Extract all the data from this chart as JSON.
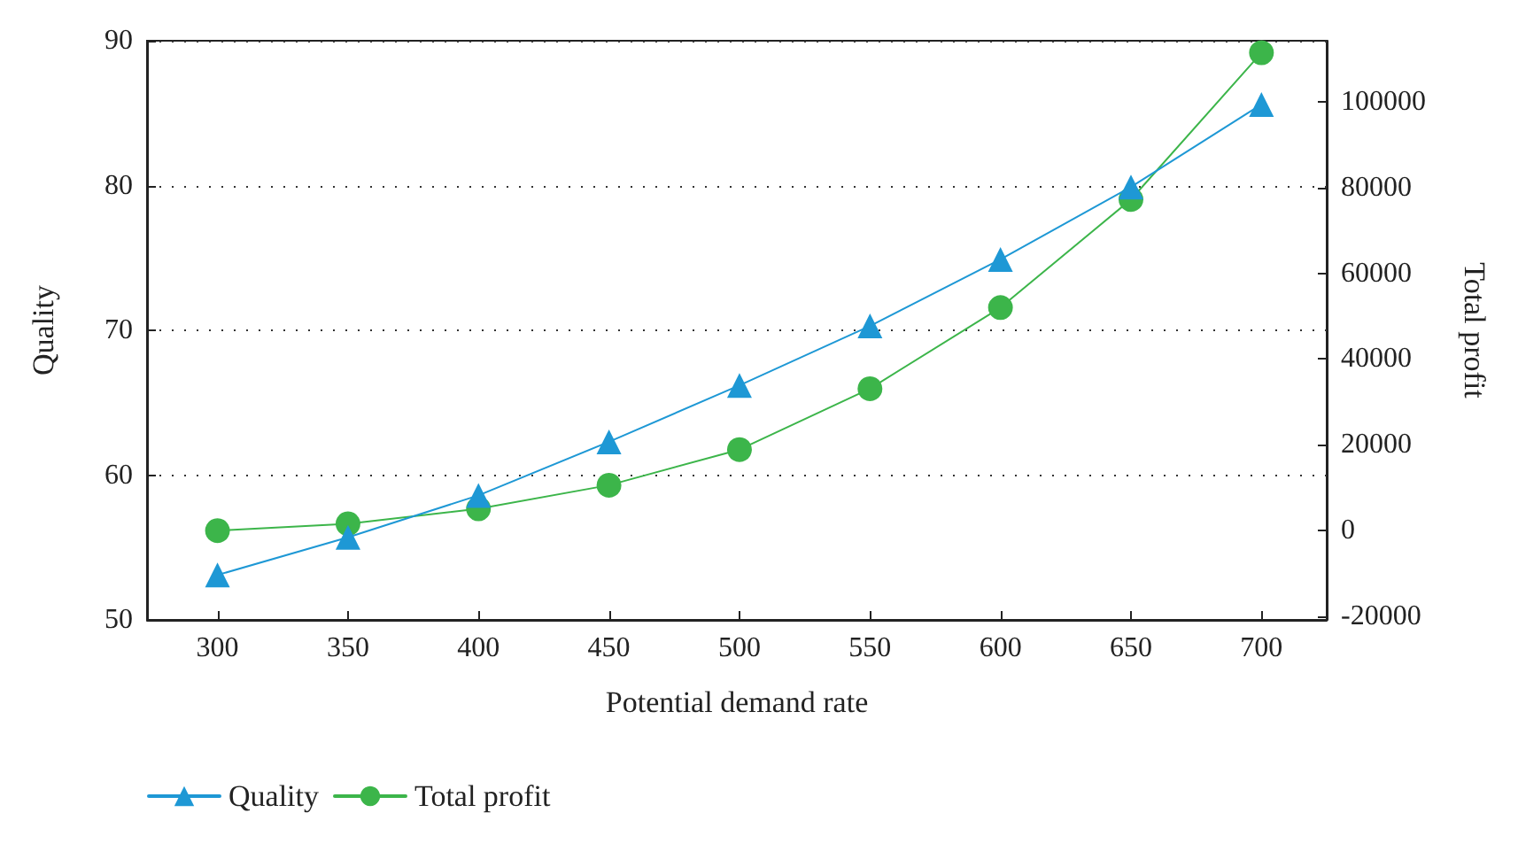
{
  "chart_data": {
    "type": "line",
    "xlabel": "Potential demand rate",
    "ylabel": "Quality",
    "y2label": "Total profit",
    "x": [
      300,
      350,
      400,
      450,
      500,
      550,
      600,
      650,
      700
    ],
    "series": [
      {
        "name": "Quality",
        "color": "#1e98d5",
        "marker": "triangle",
        "values": [
          53.1,
          55.7,
          58.6,
          62.3,
          66.2,
          70.3,
          74.9,
          79.9,
          85.6
        ]
      },
      {
        "name": "Total profit",
        "color": "#3cb54a",
        "marker": "circle",
        "axis": "y2",
        "values": [
          0,
          1600,
          5100,
          10600,
          18900,
          33100,
          52000,
          77200,
          111400
        ]
      }
    ],
    "xlim": [
      273,
      725
    ],
    "xticks": [
      300,
      350,
      400,
      450,
      500,
      550,
      600,
      650,
      700
    ],
    "ylim": [
      50,
      90
    ],
    "yticks": [
      50,
      60,
      70,
      80,
      90
    ],
    "y2lim": [
      -20800,
      114200
    ],
    "y2ticks": [
      -20000,
      0,
      20000,
      40000,
      60000,
      80000,
      100000
    ],
    "grid": "y",
    "line_style": "solid",
    "legend": "bottom left"
  }
}
